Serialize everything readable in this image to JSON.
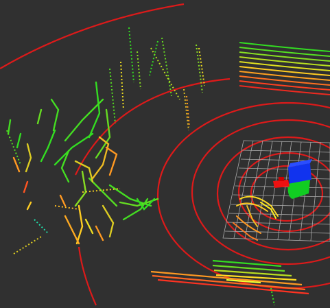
{
  "viewer": {
    "background": "#303030",
    "range_ring_color": "#dd1a1a",
    "grid_color": "#b8b8b8",
    "axis_colors": {
      "x": "#ee1111",
      "y": "#11cc22",
      "z": "#1133ee"
    },
    "point_gradient": [
      "#ee2222",
      "#ff8800",
      "#ffee22",
      "#22dd22"
    ]
  }
}
